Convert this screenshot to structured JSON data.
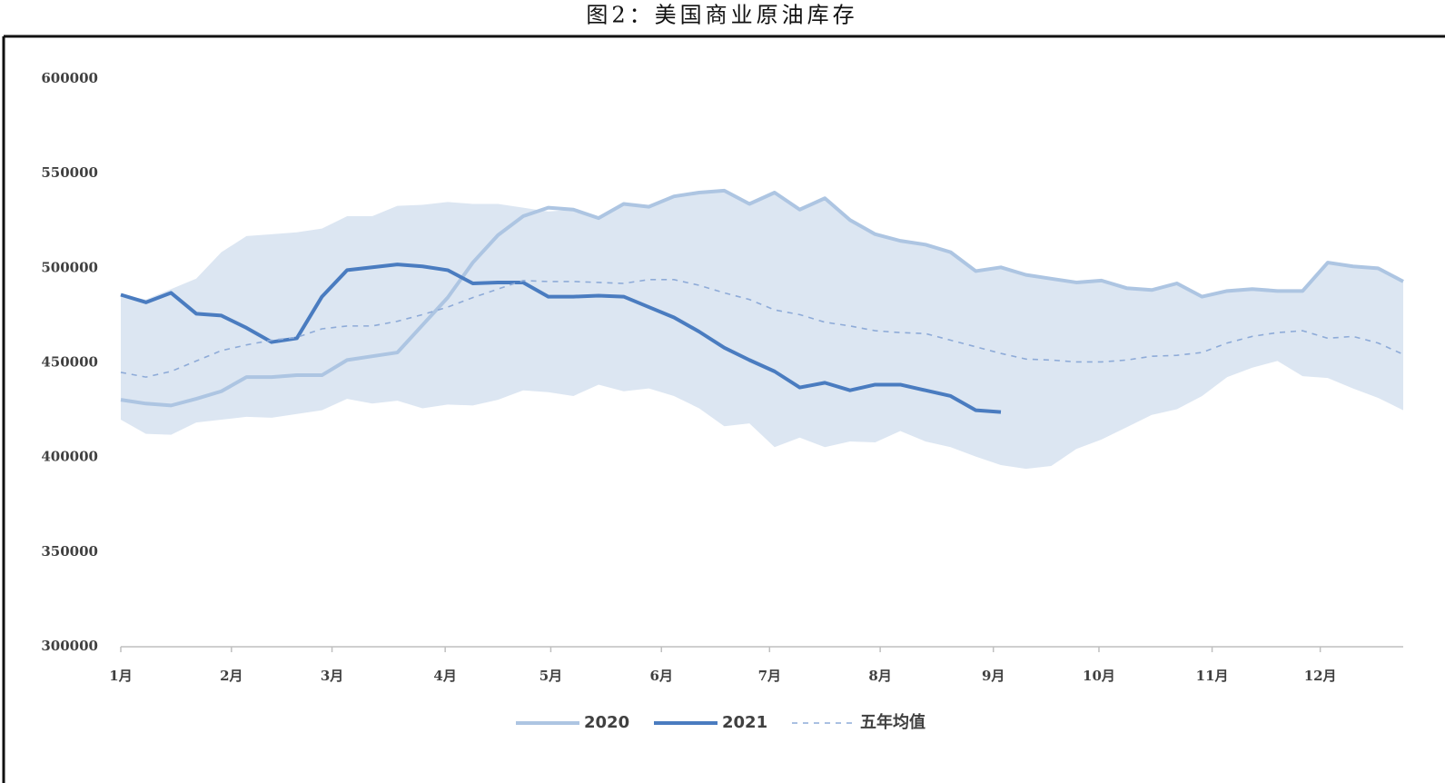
{
  "chart_data": {
    "type": "line",
    "title": "图2：美国商业原油库存",
    "x": [
      1,
      2,
      3,
      4,
      5,
      6,
      7,
      8,
      9,
      10,
      11,
      12,
      13,
      14,
      15,
      16,
      17,
      18,
      19,
      20,
      21,
      22,
      23,
      24,
      25,
      26,
      27,
      28,
      29,
      30,
      31,
      32,
      33,
      34,
      35,
      36,
      37,
      38,
      39,
      40,
      41,
      42,
      43,
      44,
      45,
      46,
      47,
      48,
      49,
      50,
      51,
      52
    ],
    "xlim": [
      1,
      52
    ],
    "xticks": [
      {
        "value": 1,
        "label": "1月"
      },
      {
        "value": 5.4,
        "label": "2月"
      },
      {
        "value": 9.4,
        "label": "3月"
      },
      {
        "value": 13.9,
        "label": "4月"
      },
      {
        "value": 18.1,
        "label": "5月"
      },
      {
        "value": 22.5,
        "label": "6月"
      },
      {
        "value": 26.8,
        "label": "7月"
      },
      {
        "value": 31.2,
        "label": "8月"
      },
      {
        "value": 35.7,
        "label": "9月"
      },
      {
        "value": 39.9,
        "label": "10月"
      },
      {
        "value": 44.4,
        "label": "11月"
      },
      {
        "value": 48.7,
        "label": "12月"
      }
    ],
    "ylim": [
      300000,
      600000
    ],
    "yticks": [
      300000,
      350000,
      400000,
      450000,
      500000,
      550000,
      600000
    ],
    "band": {
      "color": "#dce6f2",
      "upper": [
        486000,
        483500,
        489000,
        494500,
        508500,
        517000,
        518000,
        519000,
        521000,
        527500,
        527500,
        533000,
        533500,
        535000,
        534000,
        534000,
        532000,
        530000,
        531000,
        526500,
        534000,
        532500,
        538000,
        540000,
        541000,
        534000,
        540000,
        531000,
        537000,
        525500,
        518000,
        514500,
        512500,
        508500,
        498500,
        500500,
        496500,
        494500,
        492500,
        493500,
        489500,
        488500,
        492000,
        485000,
        488000,
        489000,
        488000,
        488000,
        503000,
        501000,
        500000,
        493000
      ],
      "lower": [
        420000,
        412500,
        412000,
        418500,
        420000,
        421500,
        421000,
        423000,
        425000,
        431000,
        428500,
        430000,
        426000,
        428000,
        427500,
        430500,
        435500,
        434500,
        432500,
        438500,
        435000,
        436500,
        432500,
        426000,
        416500,
        418000,
        405500,
        410500,
        405500,
        408500,
        408000,
        414000,
        408500,
        405500,
        400500,
        396000,
        394000,
        395500,
        404500,
        409500,
        416000,
        422500,
        425500,
        432500,
        442500,
        447500,
        451000,
        443000,
        442000,
        436500,
        431500,
        425000
      ]
    },
    "series": [
      {
        "name": "2020",
        "color": "#adc5e2",
        "dash": false,
        "width": 4,
        "values": [
          430500,
          428500,
          427500,
          431000,
          435000,
          442500,
          442500,
          443500,
          443500,
          451500,
          453500,
          455500,
          470000,
          484500,
          503000,
          517500,
          527500,
          532000,
          531000,
          526500,
          534000,
          532500,
          538000,
          540000,
          541000,
          534000,
          540000,
          531000,
          537000,
          525500,
          518000,
          514500,
          512500,
          508500,
          498500,
          500500,
          496500,
          494500,
          492500,
          493500,
          489500,
          488500,
          492000,
          485000,
          488000,
          489000,
          488000,
          488000,
          503000,
          501000,
          500000,
          493000
        ]
      },
      {
        "name": "2021",
        "color": "#4a7cc0",
        "dash": false,
        "width": 4,
        "values": [
          486000,
          482000,
          487000,
          476000,
          475000,
          468500,
          461000,
          463000,
          485000,
          499000,
          500500,
          502000,
          501000,
          499000,
          492000,
          492500,
          492500,
          485000,
          485000,
          485500,
          485000,
          479500,
          474000,
          466500,
          458000,
          451500,
          445500,
          437000,
          439500,
          435500,
          438500,
          438500,
          435500,
          432500,
          425000,
          424000,
          null,
          null,
          null,
          null,
          null,
          null,
          null,
          null,
          null,
          null,
          null,
          null,
          null,
          null,
          null,
          null
        ]
      },
      {
        "name": "五年均值",
        "color": "#8eabd8",
        "dash": true,
        "width": 1.6,
        "values": [
          445000,
          442500,
          445500,
          451000,
          456500,
          459500,
          462000,
          463500,
          468000,
          469500,
          469500,
          472000,
          475500,
          479500,
          484500,
          489000,
          493500,
          493000,
          493000,
          492500,
          492000,
          494000,
          494000,
          491000,
          487000,
          483500,
          478000,
          475500,
          471500,
          469500,
          467000,
          466000,
          465500,
          462000,
          458500,
          455000,
          452000,
          451500,
          450500,
          450500,
          451500,
          453500,
          454000,
          455500,
          460500,
          464000,
          466000,
          467000,
          463000,
          464000,
          460500,
          454500
        ]
      }
    ]
  }
}
